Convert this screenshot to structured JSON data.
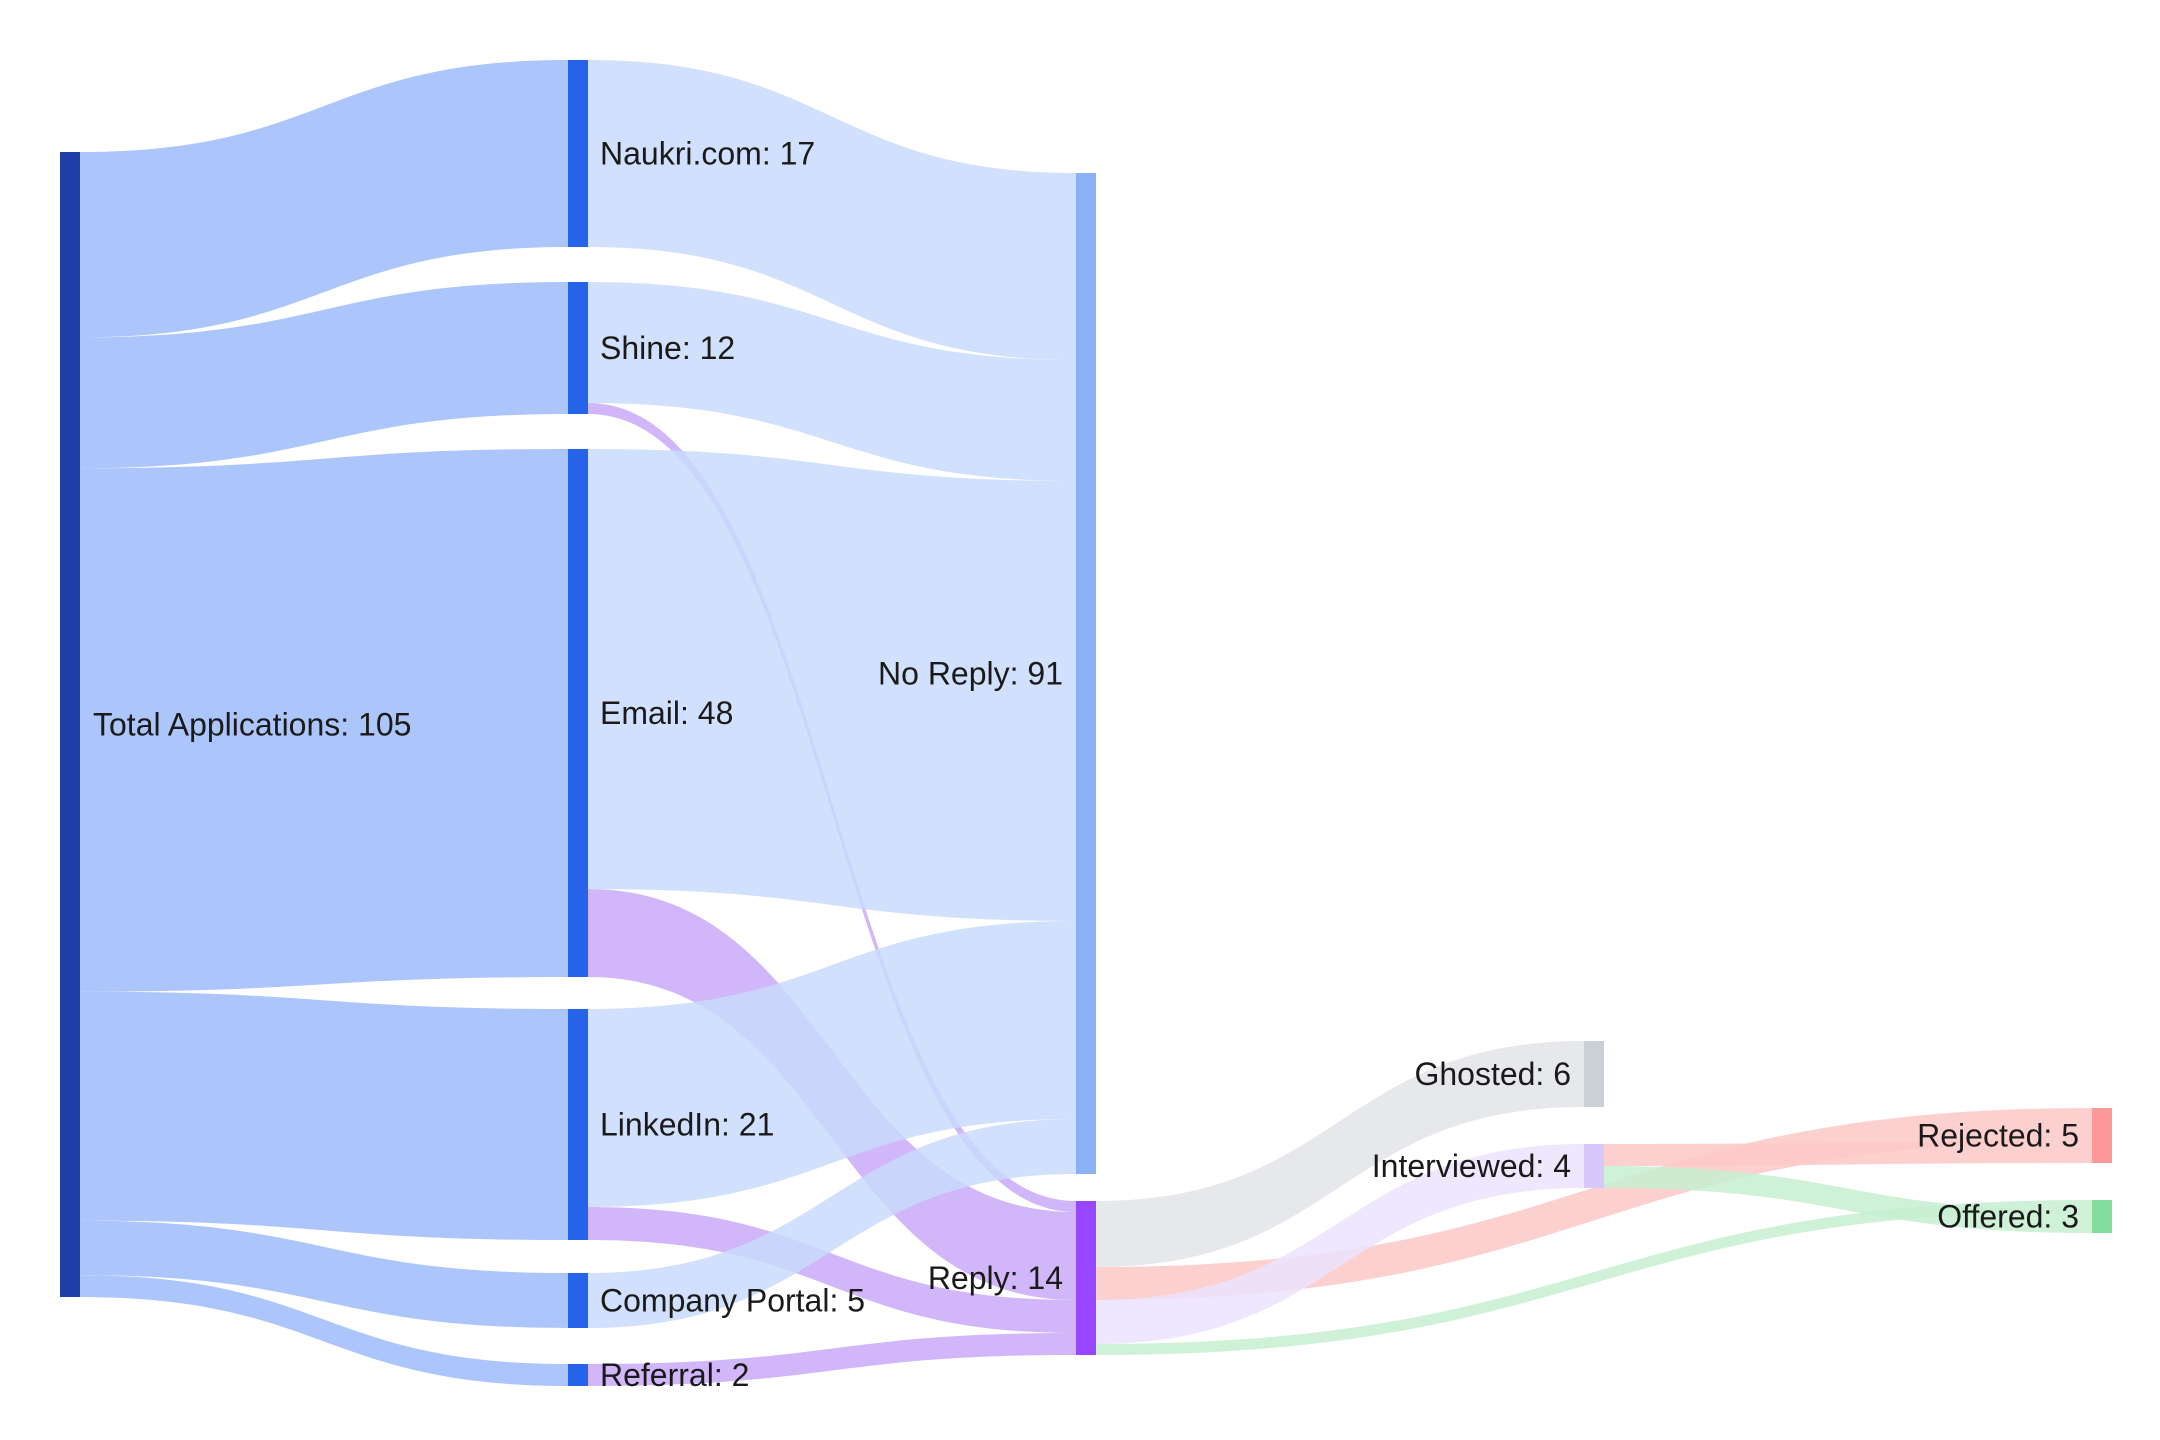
{
  "chart_data": {
    "type": "sankey",
    "title": "",
    "colors": {
      "total": "#1e40a6",
      "source": "#2563eb",
      "no_reply": "#8db1f7",
      "reply": "#9747ff",
      "ghosted": "#cbcfd6",
      "interviewed": "#d7c7fb",
      "rejected": "#fc9898",
      "offered": "#82de9b",
      "link_to_source": "#9dbcfa",
      "link_to_no_reply": "#c9dafc",
      "link_to_reply": "#c9aaf8",
      "link_to_ghosted": "#e2e4e7",
      "link_to_interviewed": "#ebe3fd",
      "link_to_rejected": "#fdc8c8",
      "link_to_offered": "#c6efd0"
    },
    "nodes": [
      {
        "id": "total",
        "name": "Total Applications",
        "value": 105,
        "label": "Total Applications: 105"
      },
      {
        "id": "naukri",
        "name": "Naukri.com",
        "value": 17,
        "label": "Naukri.com: 17"
      },
      {
        "id": "shine",
        "name": "Shine",
        "value": 12,
        "label": "Shine: 12"
      },
      {
        "id": "email",
        "name": "Email",
        "value": 48,
        "label": "Email: 48"
      },
      {
        "id": "linkedin",
        "name": "LinkedIn",
        "value": 21,
        "label": "LinkedIn: 21"
      },
      {
        "id": "portal",
        "name": "Company Portal",
        "value": 5,
        "label": "Company Portal: 5"
      },
      {
        "id": "referral",
        "name": "Referral",
        "value": 2,
        "label": "Referral: 2"
      },
      {
        "id": "no_reply",
        "name": "No Reply",
        "value": 91,
        "label": "No Reply: 91"
      },
      {
        "id": "reply",
        "name": "Reply",
        "value": 14,
        "label": "Reply: 14"
      },
      {
        "id": "ghosted",
        "name": "Ghosted",
        "value": 6,
        "label": "Ghosted: 6"
      },
      {
        "id": "interviewed",
        "name": "Interviewed",
        "value": 4,
        "label": "Interviewed: 4"
      },
      {
        "id": "rejected",
        "name": "Rejected",
        "value": 5,
        "label": "Rejected: 5"
      },
      {
        "id": "offered",
        "name": "Offered",
        "value": 3,
        "label": "Offered: 3"
      }
    ],
    "links": [
      {
        "source": "total",
        "target": "naukri",
        "value": 17
      },
      {
        "source": "total",
        "target": "shine",
        "value": 12
      },
      {
        "source": "total",
        "target": "email",
        "value": 48
      },
      {
        "source": "total",
        "target": "linkedin",
        "value": 21
      },
      {
        "source": "total",
        "target": "portal",
        "value": 5
      },
      {
        "source": "total",
        "target": "referral",
        "value": 2
      },
      {
        "source": "naukri",
        "target": "no_reply",
        "value": 17
      },
      {
        "source": "shine",
        "target": "no_reply",
        "value": 11
      },
      {
        "source": "shine",
        "target": "reply",
        "value": 1
      },
      {
        "source": "email",
        "target": "no_reply",
        "value": 40
      },
      {
        "source": "email",
        "target": "reply",
        "value": 8
      },
      {
        "source": "linkedin",
        "target": "no_reply",
        "value": 18
      },
      {
        "source": "linkedin",
        "target": "reply",
        "value": 3
      },
      {
        "source": "portal",
        "target": "no_reply",
        "value": 5
      },
      {
        "source": "referral",
        "target": "reply",
        "value": 2
      },
      {
        "source": "reply",
        "target": "ghosted",
        "value": 6
      },
      {
        "source": "reply",
        "target": "rejected",
        "value": 3
      },
      {
        "source": "reply",
        "target": "interviewed",
        "value": 4
      },
      {
        "source": "reply",
        "target": "offered",
        "value": 1
      },
      {
        "source": "interviewed",
        "target": "rejected",
        "value": 2
      },
      {
        "source": "interviewed",
        "target": "offered",
        "value": 2
      }
    ]
  }
}
